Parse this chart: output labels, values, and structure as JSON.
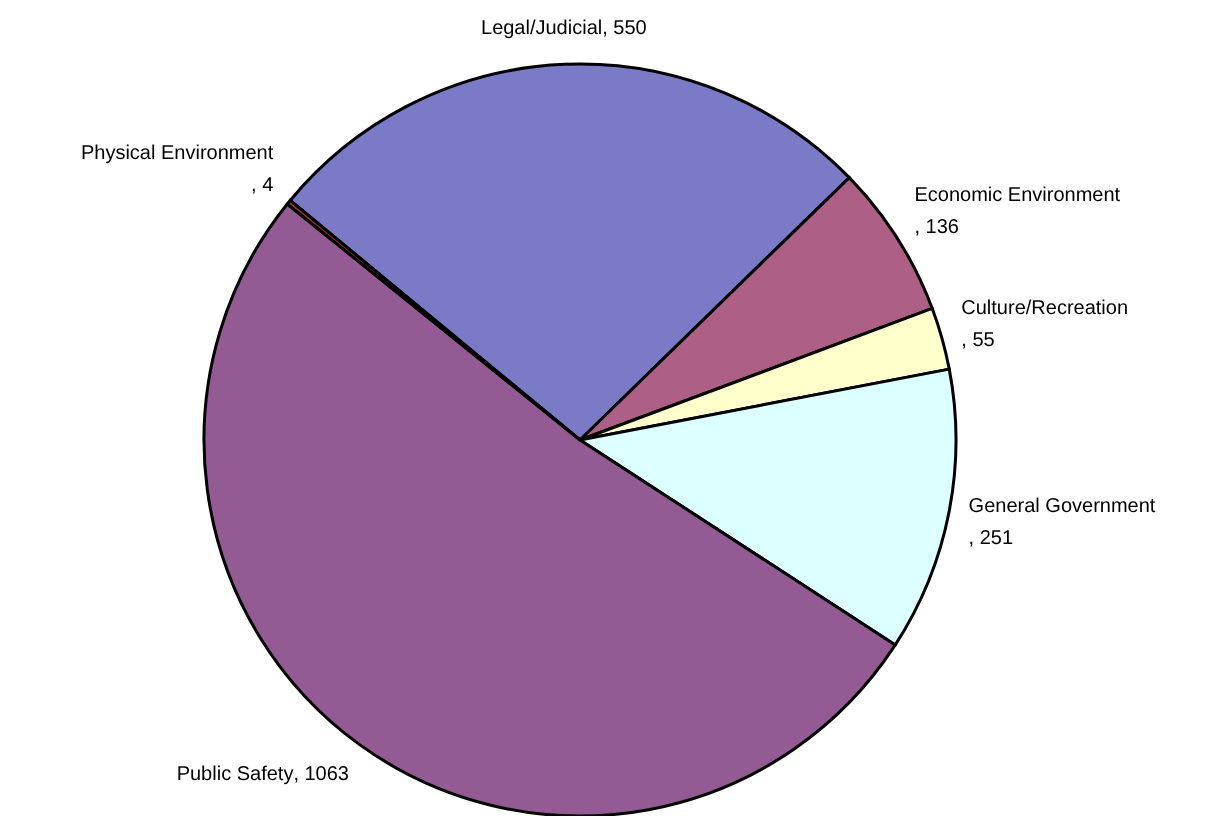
{
  "chart_data": {
    "type": "pie",
    "categories": [
      "Legal/Judicial",
      "Economic Environment",
      "Culture/Recreation",
      "General Government",
      "Public Safety",
      "Physical Environment"
    ],
    "values": [
      550,
      136,
      55,
      251,
      1063,
      4
    ],
    "value_labels": [
      ", 550",
      ", 136",
      ", 55",
      ", 251",
      ", 1063",
      ", 4"
    ],
    "colors": [
      "#7a7ac6",
      "#ad5f86",
      "#ffffcc",
      "#dcffff",
      "#935a93",
      "#993333"
    ]
  }
}
